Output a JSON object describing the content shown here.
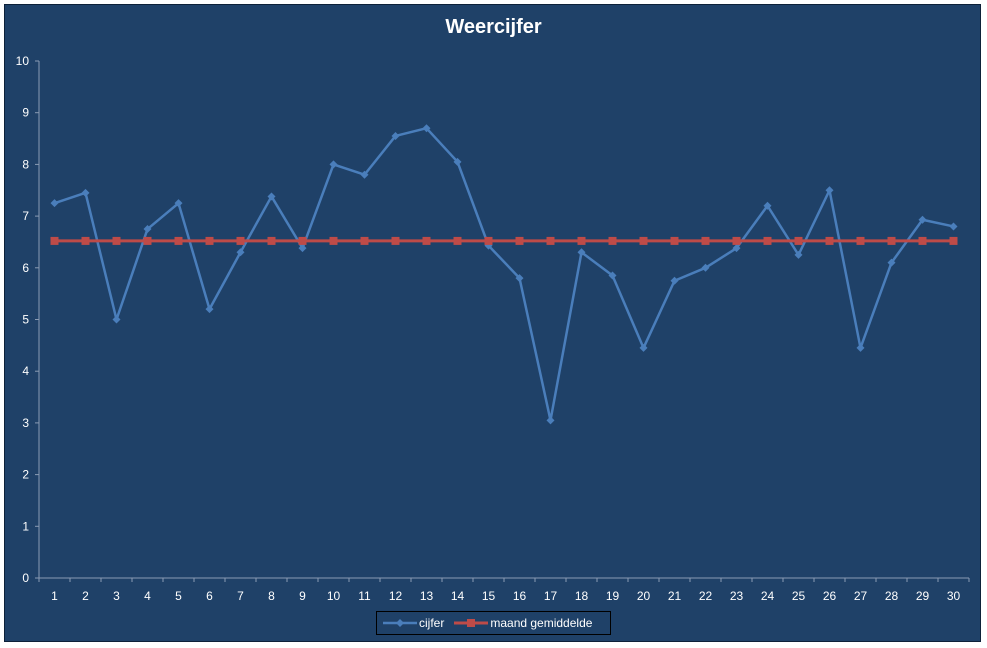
{
  "chart_data": {
    "type": "line",
    "title": "Weercijfer",
    "x": [
      1,
      2,
      3,
      4,
      5,
      6,
      7,
      8,
      9,
      10,
      11,
      12,
      13,
      14,
      15,
      16,
      17,
      18,
      19,
      20,
      21,
      22,
      23,
      24,
      25,
      26,
      27,
      28,
      29,
      30
    ],
    "xlim": [
      0.5,
      30.5
    ],
    "ylim": [
      0,
      10
    ],
    "y_ticks": [
      0,
      1,
      2,
      3,
      4,
      5,
      6,
      7,
      8,
      9,
      10
    ],
    "grid": false,
    "legend_position": "bottom",
    "series": [
      {
        "name": "cijfer",
        "color": "#4a7ebb",
        "marker": "diamond",
        "values": [
          7.25,
          7.45,
          5.0,
          6.75,
          7.25,
          5.2,
          6.3,
          7.38,
          6.38,
          8.0,
          7.8,
          8.55,
          8.7,
          8.05,
          6.43,
          5.8,
          3.05,
          6.3,
          5.85,
          4.45,
          5.75,
          6.0,
          6.38,
          7.2,
          6.25,
          7.5,
          4.45,
          6.1,
          6.93,
          6.8
        ]
      },
      {
        "name": "maand gemiddelde",
        "color": "#be4b48",
        "marker": "square",
        "values": [
          6.52,
          6.52,
          6.52,
          6.52,
          6.52,
          6.52,
          6.52,
          6.52,
          6.52,
          6.52,
          6.52,
          6.52,
          6.52,
          6.52,
          6.52,
          6.52,
          6.52,
          6.52,
          6.52,
          6.52,
          6.52,
          6.52,
          6.52,
          6.52,
          6.52,
          6.52,
          6.52,
          6.52,
          6.52,
          6.52
        ]
      }
    ]
  }
}
